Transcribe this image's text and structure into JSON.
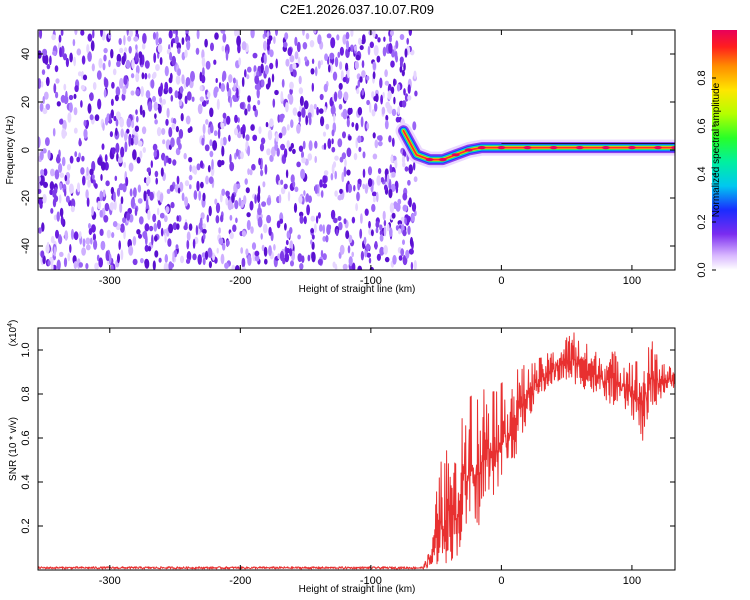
{
  "figure": {
    "title": "C2E1.2026.037.10.07.R09"
  },
  "colors": {
    "snr_line": "#e83030",
    "noise": "#6a1de0",
    "background": "#ffffff"
  },
  "chart_data": [
    {
      "type": "heatmap",
      "id": "spectrogram",
      "title": "C2E1.2026.037.10.07.R09",
      "xlabel": "Height of straight line (km)",
      "ylabel": "Frequency (Hz)",
      "xlim": [
        -355,
        133
      ],
      "ylim": [
        -50,
        50
      ],
      "xticks": [
        -300,
        -200,
        -100,
        0,
        100
      ],
      "xtick_labels": [
        "-300",
        "-200",
        "-100",
        "0",
        "100"
      ],
      "yticks": [
        -40,
        -20,
        0,
        20,
        40
      ],
      "ytick_labels": [
        "-40",
        "-20",
        "0",
        "20",
        "40"
      ],
      "noise_region_x": [
        -355,
        -73
      ],
      "signal_ridge": [
        {
          "x": -75,
          "f": 8
        },
        {
          "x": -70,
          "f": 3
        },
        {
          "x": -65,
          "f": -2
        },
        {
          "x": -55,
          "f": -4
        },
        {
          "x": -45,
          "f": -4
        },
        {
          "x": -35,
          "f": -2
        },
        {
          "x": -25,
          "f": 0
        },
        {
          "x": -15,
          "f": 1
        },
        {
          "x": 0,
          "f": 1
        },
        {
          "x": 20,
          "f": 1
        },
        {
          "x": 40,
          "f": 1
        },
        {
          "x": 60,
          "f": 1
        },
        {
          "x": 80,
          "f": 1
        },
        {
          "x": 100,
          "f": 1
        },
        {
          "x": 120,
          "f": 1
        },
        {
          "x": 133,
          "f": 1
        }
      ],
      "colorbar": {
        "label": "Normalized spectral amplitude",
        "range": [
          0,
          1
        ],
        "ticks": [
          0.0,
          0.2,
          0.4,
          0.6,
          0.8
        ],
        "tick_labels": [
          "0.0",
          "0.2",
          "0.4",
          "0.6",
          "0.8"
        ]
      }
    },
    {
      "type": "line",
      "id": "snr",
      "xlabel": "Height of straight line (km)",
      "ylabel": "SNR (10 * v/v)",
      "exponent_label": "(x10",
      "exponent_value": "4",
      "exponent_close": ")",
      "xlim": [
        -355,
        133
      ],
      "ylim": [
        0,
        1.1
      ],
      "xticks": [
        -300,
        -200,
        -100,
        0,
        100
      ],
      "xtick_labels": [
        "-300",
        "-200",
        "-100",
        "0",
        "100"
      ],
      "yticks": [
        0.2,
        0.4,
        0.6,
        0.8,
        1.0
      ],
      "ytick_labels": [
        "0.2",
        "0.4",
        "0.6",
        "0.8",
        "1.0"
      ],
      "series": [
        {
          "name": "SNR",
          "envelope": [
            {
              "x": -355,
              "lo": 0.005,
              "hi": 0.015
            },
            {
              "x": -60,
              "lo": 0.005,
              "hi": 0.015
            },
            {
              "x": -53,
              "lo": 0.01,
              "hi": 0.12
            },
            {
              "x": -48,
              "lo": 0.02,
              "hi": 0.48
            },
            {
              "x": -42,
              "lo": 0.03,
              "hi": 0.55
            },
            {
              "x": -35,
              "lo": 0.05,
              "hi": 0.5
            },
            {
              "x": -30,
              "lo": 0.1,
              "hi": 0.7
            },
            {
              "x": -25,
              "lo": 0.2,
              "hi": 0.95
            },
            {
              "x": -20,
              "lo": 0.15,
              "hi": 0.8
            },
            {
              "x": -10,
              "lo": 0.3,
              "hi": 0.9
            },
            {
              "x": 0,
              "lo": 0.4,
              "hi": 0.85
            },
            {
              "x": 10,
              "lo": 0.5,
              "hi": 0.92
            },
            {
              "x": 25,
              "lo": 0.75,
              "hi": 0.95
            },
            {
              "x": 40,
              "lo": 0.85,
              "hi": 1.0
            },
            {
              "x": 55,
              "lo": 0.85,
              "hi": 1.1
            },
            {
              "x": 70,
              "lo": 0.8,
              "hi": 1.0
            },
            {
              "x": 85,
              "lo": 0.75,
              "hi": 1.0
            },
            {
              "x": 100,
              "lo": 0.7,
              "hi": 0.98
            },
            {
              "x": 108,
              "lo": 0.57,
              "hi": 0.95
            },
            {
              "x": 115,
              "lo": 0.72,
              "hi": 1.05
            },
            {
              "x": 125,
              "lo": 0.8,
              "hi": 0.95
            },
            {
              "x": 133,
              "lo": 0.83,
              "hi": 0.9
            }
          ]
        }
      ]
    }
  ]
}
